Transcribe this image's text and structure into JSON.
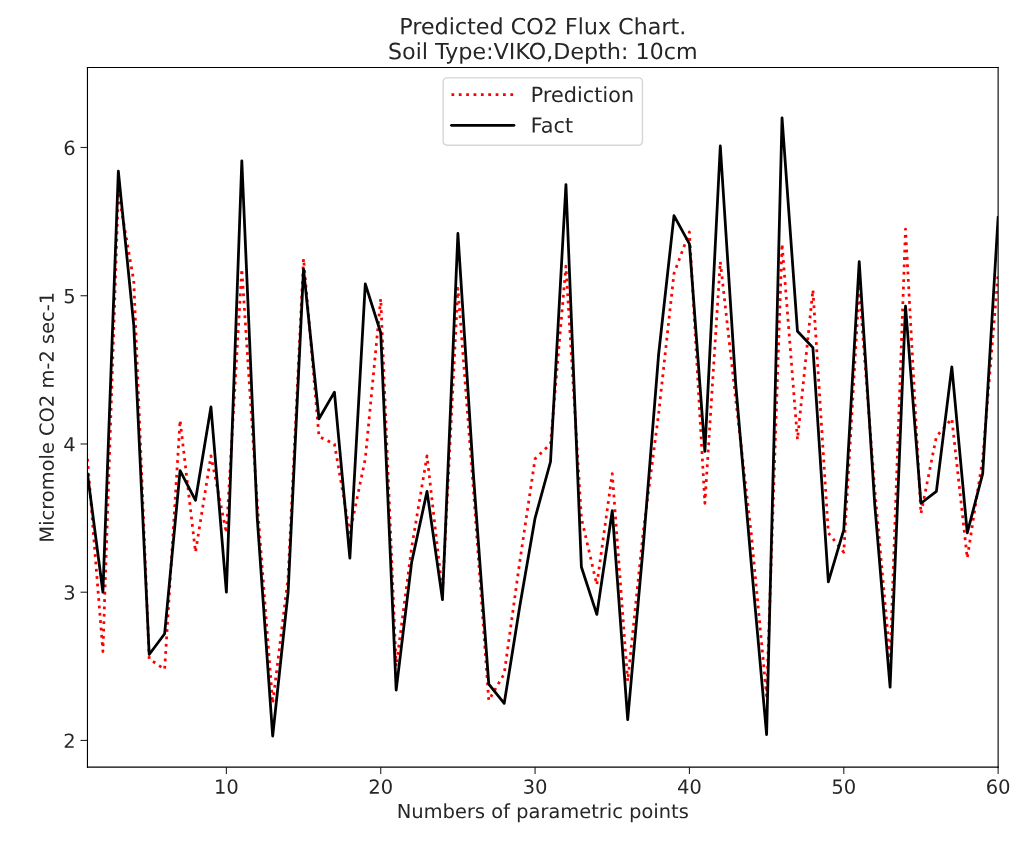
{
  "chart_data": {
    "type": "line",
    "title": "Predicted CO2 Flux Chart.\nSoil Type:VIKO,Depth: 10cm",
    "xlabel": "Numbers of parametric points",
    "ylabel": "Micromole CO2 m-2 sec-1",
    "x": [
      1,
      2,
      3,
      4,
      5,
      6,
      7,
      8,
      9,
      10,
      11,
      12,
      13,
      14,
      15,
      16,
      17,
      18,
      19,
      20,
      21,
      22,
      23,
      24,
      25,
      26,
      27,
      28,
      29,
      30,
      31,
      32,
      33,
      34,
      35,
      36,
      37,
      38,
      39,
      40,
      41,
      42,
      43,
      44,
      45,
      46,
      47,
      48,
      49,
      50,
      51,
      52,
      53,
      54,
      55,
      56,
      57,
      58,
      59,
      60
    ],
    "series": [
      {
        "name": "Prediction",
        "color": "#ff0000",
        "line_style": "dotted",
        "values": [
          3.9,
          2.6,
          5.7,
          5.1,
          2.55,
          2.48,
          4.16,
          3.27,
          3.92,
          3.4,
          5.18,
          3.6,
          2.25,
          3.1,
          5.25,
          4.05,
          4.0,
          3.4,
          3.9,
          4.98,
          2.5,
          3.3,
          3.92,
          3.0,
          5.05,
          3.7,
          2.27,
          2.45,
          3.2,
          3.9,
          4.0,
          5.2,
          3.5,
          3.05,
          3.8,
          2.4,
          3.4,
          4.2,
          5.15,
          5.43,
          3.6,
          5.23,
          4.3,
          3.4,
          2.3,
          5.35,
          4.03,
          5.04,
          3.4,
          3.27,
          5.05,
          3.7,
          2.55,
          5.45,
          3.53,
          4.05,
          4.17,
          3.23,
          3.9,
          5.15
        ]
      },
      {
        "name": "Fact",
        "color": "#000000",
        "line_style": "solid",
        "values": [
          3.8,
          3.0,
          5.84,
          4.8,
          2.58,
          2.72,
          3.82,
          3.62,
          4.25,
          3.0,
          5.91,
          3.5,
          2.03,
          3.0,
          5.18,
          4.17,
          4.35,
          3.23,
          5.08,
          4.75,
          2.34,
          3.2,
          3.68,
          2.95,
          5.42,
          3.8,
          2.38,
          2.25,
          2.9,
          3.5,
          3.88,
          5.75,
          3.17,
          2.85,
          3.55,
          2.14,
          3.3,
          4.6,
          5.54,
          5.35,
          3.95,
          6.01,
          4.4,
          3.2,
          2.04,
          6.2,
          4.76,
          4.65,
          3.07,
          3.42,
          5.23,
          3.6,
          2.36,
          4.93,
          3.6,
          3.68,
          4.52,
          3.4,
          3.8,
          5.53
        ]
      }
    ],
    "xlim": [
      1,
      60
    ],
    "xticks": [
      10,
      20,
      30,
      40,
      50,
      60
    ],
    "ylim": [
      1.82,
      6.54
    ],
    "yticks": [
      2,
      3,
      4,
      5,
      6
    ],
    "grid": false,
    "legend": "top",
    "marker": "none"
  }
}
